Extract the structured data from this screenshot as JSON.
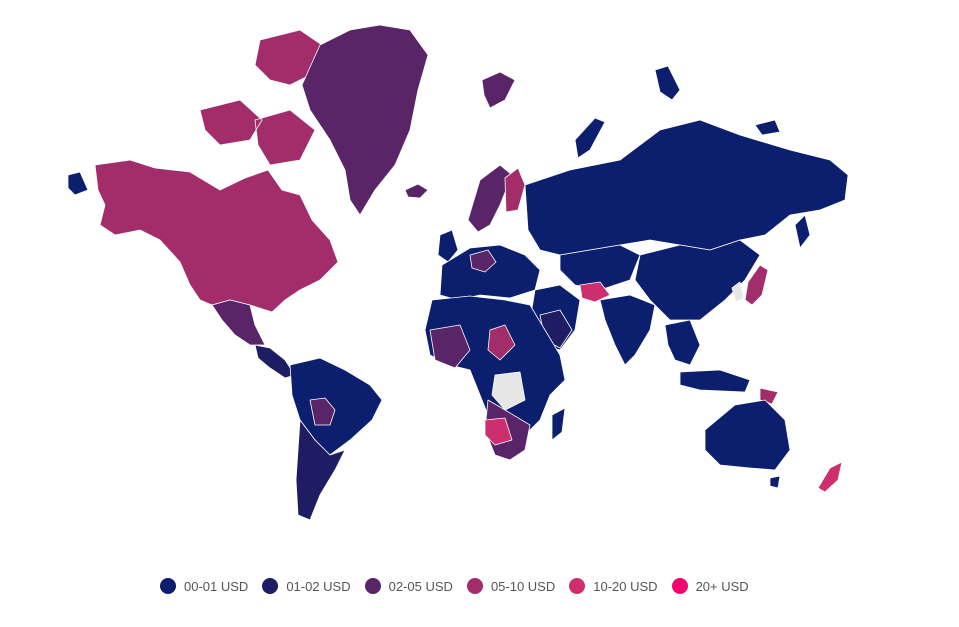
{
  "legend": [
    {
      "label": "00-01 USD",
      "color": "#0b1f6e"
    },
    {
      "label": "01-02 USD",
      "color": "#1e1d63"
    },
    {
      "label": "02-05 USD",
      "color": "#5a2468"
    },
    {
      "label": "05-10 USD",
      "color": "#a32c6a"
    },
    {
      "label": "10-20 USD",
      "color": "#cc2e6e"
    },
    {
      "label": "20+ USD",
      "color": "#f0066f"
    }
  ],
  "no_data_color": "#e6e6e6",
  "regions": {
    "north_america": "05-10 USD",
    "greenland": "02-05 USD",
    "iceland": "02-05 USD",
    "mexico": "02-05 USD",
    "central_america": "01-02 USD",
    "south_america_north": "00-01 USD",
    "south_america_south": "01-02 USD",
    "europe_west": "00-01 USD",
    "scandinavia": "02-05 USD",
    "finland": "05-10 USD",
    "russia": "00-01 USD",
    "middle_east": "00-01 USD",
    "china": "00-01 USD",
    "japan": "05-10 USD",
    "africa": "00-01 USD",
    "southern_africa": "02-05 USD",
    "australia": "00-01 USD",
    "new_zealand": "10-20 USD"
  }
}
